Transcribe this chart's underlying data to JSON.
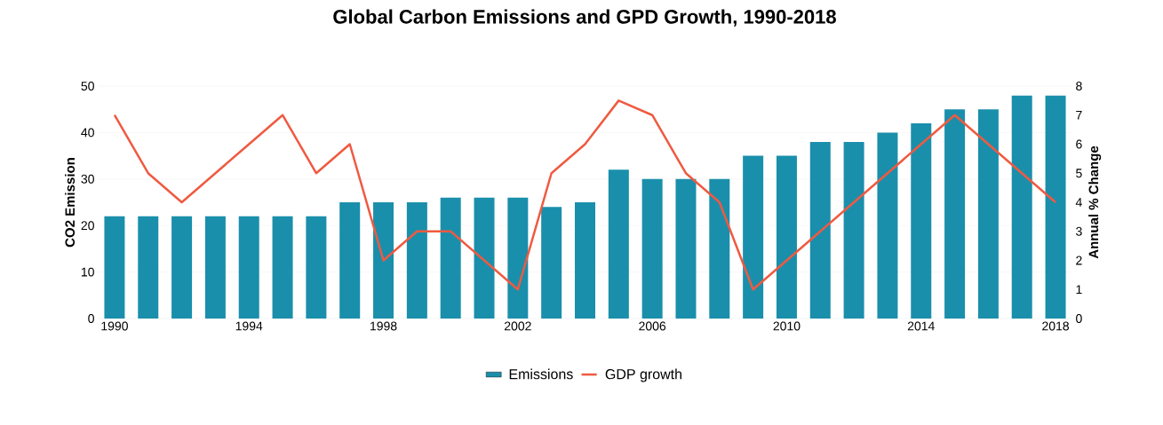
{
  "chart_data": {
    "type": "bar",
    "title": "Global Carbon Emissions and GPD Growth, 1990-2018",
    "ylabel": "CO2 Emission",
    "y2label": "Annual % Change",
    "x": [
      1990,
      1991,
      1992,
      1993,
      1994,
      1995,
      1996,
      1997,
      1998,
      1999,
      2000,
      2001,
      2002,
      2003,
      2004,
      2005,
      2006,
      2007,
      2008,
      2009,
      2010,
      2011,
      2012,
      2013,
      2014,
      2015,
      2016,
      2017,
      2018
    ],
    "series": [
      {
        "name": "Emissions",
        "color": "#1a8fab",
        "values": [
          22,
          22,
          22,
          22,
          22,
          22,
          22,
          25,
          25,
          25,
          26,
          26,
          26,
          24,
          25,
          32,
          30,
          30,
          30,
          35,
          35,
          38,
          38,
          40,
          42,
          45,
          45,
          48,
          48
        ]
      },
      {
        "name": "GDP growth",
        "type": "line",
        "axis": "y2",
        "color": "#ef5a41",
        "values": [
          7,
          5,
          4,
          5,
          6,
          7,
          5,
          6,
          2,
          3,
          3,
          2,
          1,
          5,
          6,
          7.5,
          7,
          5,
          4,
          1,
          2,
          3,
          4,
          5,
          6,
          7,
          6,
          5,
          4
        ]
      }
    ],
    "xlim": [
      1989.5,
      2018.5
    ],
    "xticks": [
      1990,
      1994,
      1998,
      2002,
      2006,
      2010,
      2014,
      2018
    ],
    "ylim": [
      0,
      50
    ],
    "yticks": [
      0,
      10,
      20,
      30,
      40,
      50
    ],
    "y2lim": [
      0,
      8
    ],
    "y2ticks": [
      0,
      1,
      2,
      3,
      4,
      5,
      6,
      7,
      8
    ],
    "grid": "y",
    "legend": "bottom"
  }
}
